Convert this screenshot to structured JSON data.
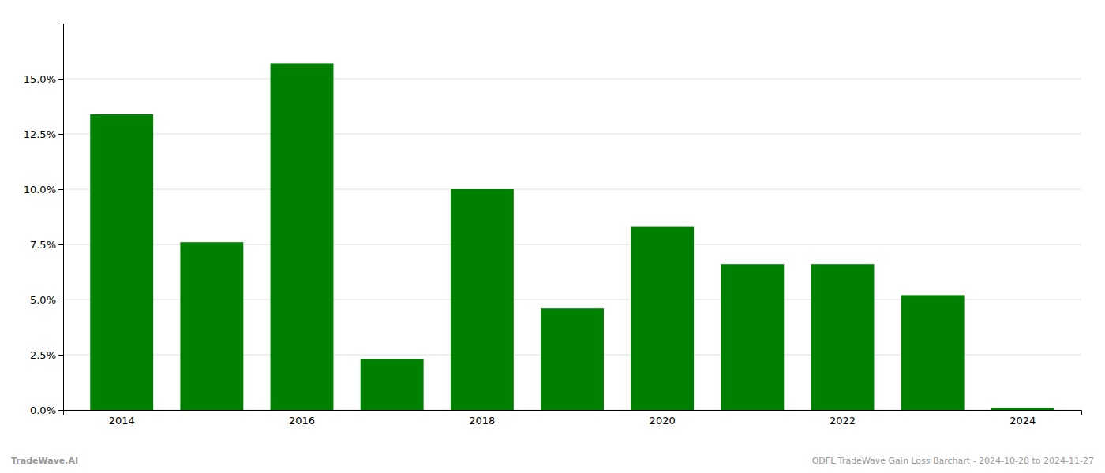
{
  "chart_data": {
    "type": "bar",
    "categories": [
      "2014",
      null,
      "2016",
      null,
      "2018",
      null,
      "2020",
      null,
      "2022",
      null,
      "2024"
    ],
    "values": [
      0.134,
      0.076,
      0.157,
      0.023,
      0.1,
      0.046,
      0.083,
      0.066,
      0.066,
      0.052,
      0.001
    ],
    "color": "#008000",
    "ylim": [
      0,
      0.175
    ],
    "yticks": [
      {
        "value": 0.0,
        "label": "0.0%"
      },
      {
        "value": 0.025,
        "label": "2.5%"
      },
      {
        "value": 0.05,
        "label": "5.0%"
      },
      {
        "value": 0.075,
        "label": "7.5%"
      },
      {
        "value": 0.1,
        "label": "10.0%"
      },
      {
        "value": 0.125,
        "label": "12.5%"
      },
      {
        "value": 0.15,
        "label": "15.0%"
      }
    ],
    "grid": true,
    "annotations": [
      "TradeWave.AI",
      "ODFL TradeWave Gain Loss Barchart - 2024-10-28 to 2024-11-27"
    ]
  }
}
